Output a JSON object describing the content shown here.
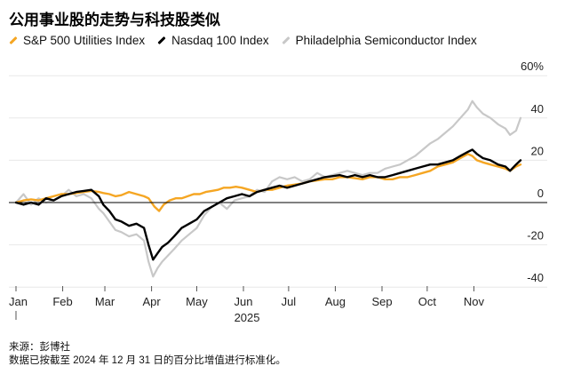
{
  "title": "公用事业股的走势与科技股类似",
  "footer": {
    "source": "来源：彭博社",
    "note": "数据已按截至 2024 年 12 月 31 日的百分比增值进行标准化。"
  },
  "colors": {
    "utilities": "#f5a623",
    "nasdaq": "#000000",
    "semis": "#c8c8c8",
    "zero_line": "#000000",
    "grid": "#e8e8e8"
  },
  "chart_data": {
    "type": "line",
    "title": "公用事业股的走势与科技股类似",
    "xlabel": "2025",
    "ylabel": "%",
    "ylim": [
      -45,
      65
    ],
    "y_ticks": [
      "60%",
      "40",
      "20",
      "0",
      "-20",
      "-40"
    ],
    "y_tick_values": [
      60,
      40,
      20,
      0,
      -20,
      -40
    ],
    "x_tick_labels": [
      "Jan",
      "Feb",
      "Mar",
      "Apr",
      "May",
      "Jun",
      "Jul",
      "Aug",
      "Sep",
      "Oct",
      "Nov"
    ],
    "x_tick_days": [
      0,
      31,
      59,
      90,
      120,
      151,
      181,
      212,
      243,
      273,
      304
    ],
    "year_label": "2025",
    "x_range_days": [
      0,
      335
    ],
    "series": [
      {
        "name": "S&P 500 Utilities Index",
        "color": "#f5a623",
        "points": [
          [
            0,
            0
          ],
          [
            5,
            1
          ],
          [
            10,
            1.5
          ],
          [
            15,
            1
          ],
          [
            20,
            2
          ],
          [
            25,
            3
          ],
          [
            30,
            4
          ],
          [
            35,
            4
          ],
          [
            40,
            4.5
          ],
          [
            45,
            5
          ],
          [
            50,
            5.5
          ],
          [
            55,
            5
          ],
          [
            58,
            4.5
          ],
          [
            62,
            4
          ],
          [
            66,
            3
          ],
          [
            70,
            3.5
          ],
          [
            75,
            5
          ],
          [
            80,
            4
          ],
          [
            85,
            3
          ],
          [
            88,
            2
          ],
          [
            92,
            -2
          ],
          [
            95,
            -4
          ],
          [
            98,
            -1
          ],
          [
            102,
            1
          ],
          [
            106,
            2
          ],
          [
            110,
            2
          ],
          [
            114,
            3
          ],
          [
            118,
            4
          ],
          [
            122,
            4
          ],
          [
            126,
            5
          ],
          [
            130,
            5.5
          ],
          [
            134,
            6
          ],
          [
            138,
            7
          ],
          [
            142,
            7
          ],
          [
            146,
            7.5
          ],
          [
            150,
            7
          ],
          [
            155,
            6
          ],
          [
            160,
            5
          ],
          [
            165,
            6
          ],
          [
            170,
            6
          ],
          [
            175,
            7
          ],
          [
            180,
            8
          ],
          [
            185,
            8.5
          ],
          [
            190,
            9
          ],
          [
            195,
            10
          ],
          [
            200,
            10.5
          ],
          [
            205,
            11
          ],
          [
            210,
            11
          ],
          [
            215,
            12
          ],
          [
            220,
            12
          ],
          [
            225,
            11.5
          ],
          [
            230,
            11
          ],
          [
            235,
            12
          ],
          [
            240,
            12
          ],
          [
            245,
            11
          ],
          [
            250,
            11
          ],
          [
            255,
            12
          ],
          [
            260,
            12
          ],
          [
            265,
            13
          ],
          [
            270,
            14
          ],
          [
            275,
            15
          ],
          [
            280,
            17
          ],
          [
            285,
            18
          ],
          [
            290,
            19
          ],
          [
            295,
            21
          ],
          [
            300,
            23
          ],
          [
            303,
            22
          ],
          [
            306,
            20
          ],
          [
            310,
            19
          ],
          [
            315,
            18
          ],
          [
            320,
            17
          ],
          [
            325,
            16
          ],
          [
            328,
            15
          ],
          [
            332,
            17
          ],
          [
            335,
            18
          ]
        ]
      },
      {
        "name": "Nasdaq 100 Index",
        "color": "#000000",
        "points": [
          [
            0,
            0
          ],
          [
            5,
            -1
          ],
          [
            10,
            0
          ],
          [
            15,
            -1
          ],
          [
            20,
            2
          ],
          [
            25,
            1
          ],
          [
            30,
            3
          ],
          [
            35,
            4
          ],
          [
            40,
            5
          ],
          [
            45,
            5.5
          ],
          [
            50,
            6
          ],
          [
            55,
            3
          ],
          [
            58,
            -1
          ],
          [
            62,
            -4
          ],
          [
            66,
            -8
          ],
          [
            70,
            -9
          ],
          [
            75,
            -11
          ],
          [
            80,
            -10
          ],
          [
            85,
            -12
          ],
          [
            88,
            -20
          ],
          [
            91,
            -27
          ],
          [
            94,
            -24
          ],
          [
            97,
            -21
          ],
          [
            101,
            -19
          ],
          [
            105,
            -16
          ],
          [
            110,
            -12
          ],
          [
            115,
            -10
          ],
          [
            120,
            -8
          ],
          [
            125,
            -4
          ],
          [
            130,
            -2
          ],
          [
            135,
            0
          ],
          [
            140,
            2
          ],
          [
            145,
            3
          ],
          [
            150,
            4
          ],
          [
            155,
            3
          ],
          [
            160,
            5
          ],
          [
            165,
            6
          ],
          [
            170,
            7
          ],
          [
            175,
            8
          ],
          [
            180,
            7
          ],
          [
            185,
            8
          ],
          [
            190,
            9
          ],
          [
            195,
            10
          ],
          [
            200,
            11
          ],
          [
            205,
            12
          ],
          [
            210,
            12.5
          ],
          [
            215,
            13
          ],
          [
            220,
            12
          ],
          [
            225,
            13
          ],
          [
            230,
            12
          ],
          [
            235,
            13
          ],
          [
            240,
            12
          ],
          [
            245,
            12
          ],
          [
            250,
            13
          ],
          [
            255,
            14
          ],
          [
            260,
            15
          ],
          [
            265,
            16
          ],
          [
            270,
            17
          ],
          [
            275,
            18
          ],
          [
            280,
            18
          ],
          [
            285,
            19
          ],
          [
            290,
            20
          ],
          [
            295,
            22
          ],
          [
            300,
            24
          ],
          [
            303,
            25
          ],
          [
            306,
            23
          ],
          [
            310,
            21
          ],
          [
            315,
            20
          ],
          [
            320,
            18
          ],
          [
            325,
            17
          ],
          [
            328,
            15
          ],
          [
            332,
            18
          ],
          [
            335,
            20
          ]
        ]
      },
      {
        "name": "Philadelphia Semiconductor Index",
        "color": "#c8c8c8",
        "points": [
          [
            0,
            0
          ],
          [
            5,
            4
          ],
          [
            10,
            -1
          ],
          [
            15,
            2
          ],
          [
            20,
            0
          ],
          [
            25,
            1
          ],
          [
            30,
            3
          ],
          [
            35,
            6
          ],
          [
            40,
            3
          ],
          [
            45,
            4
          ],
          [
            50,
            2
          ],
          [
            55,
            -3
          ],
          [
            58,
            -5
          ],
          [
            62,
            -9
          ],
          [
            66,
            -13
          ],
          [
            70,
            -14
          ],
          [
            75,
            -16
          ],
          [
            80,
            -15
          ],
          [
            85,
            -18
          ],
          [
            88,
            -28
          ],
          [
            91,
            -35
          ],
          [
            94,
            -31
          ],
          [
            97,
            -28
          ],
          [
            101,
            -25
          ],
          [
            105,
            -22
          ],
          [
            110,
            -18
          ],
          [
            115,
            -15
          ],
          [
            120,
            -12
          ],
          [
            125,
            -6
          ],
          [
            130,
            -2
          ],
          [
            135,
            0
          ],
          [
            140,
            -3
          ],
          [
            145,
            1
          ],
          [
            150,
            2
          ],
          [
            155,
            3
          ],
          [
            160,
            6
          ],
          [
            165,
            5
          ],
          [
            170,
            10
          ],
          [
            175,
            12
          ],
          [
            180,
            11
          ],
          [
            185,
            12
          ],
          [
            190,
            10
          ],
          [
            195,
            11
          ],
          [
            200,
            14
          ],
          [
            205,
            12
          ],
          [
            210,
            13
          ],
          [
            215,
            14
          ],
          [
            220,
            15
          ],
          [
            225,
            14
          ],
          [
            230,
            13
          ],
          [
            235,
            14
          ],
          [
            240,
            14
          ],
          [
            245,
            16
          ],
          [
            250,
            17
          ],
          [
            255,
            18
          ],
          [
            260,
            20
          ],
          [
            265,
            22
          ],
          [
            270,
            25
          ],
          [
            275,
            28
          ],
          [
            280,
            30
          ],
          [
            285,
            33
          ],
          [
            290,
            36
          ],
          [
            295,
            40
          ],
          [
            300,
            44
          ],
          [
            303,
            48
          ],
          [
            306,
            45
          ],
          [
            310,
            42
          ],
          [
            315,
            40
          ],
          [
            320,
            37
          ],
          [
            325,
            35
          ],
          [
            328,
            32
          ],
          [
            332,
            34
          ],
          [
            335,
            40
          ]
        ]
      }
    ]
  }
}
